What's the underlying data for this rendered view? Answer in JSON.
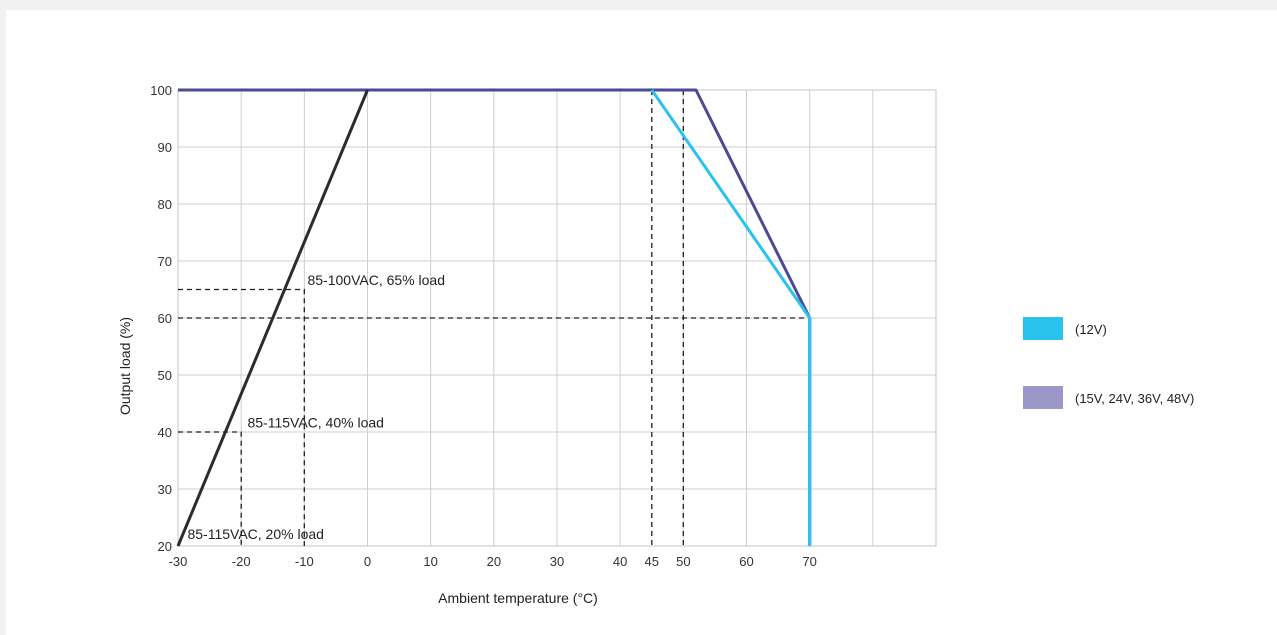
{
  "chart_data": {
    "type": "line",
    "xlabel": "Ambient temperature (°C)",
    "ylabel": "Output  load (%)",
    "xlim": [
      -30,
      90
    ],
    "ylim": [
      20,
      100
    ],
    "x_ticks": [
      {
        "value": -30,
        "label": "-30"
      },
      {
        "value": -20,
        "label": "-20"
      },
      {
        "value": -10,
        "label": "-10"
      },
      {
        "value": 0,
        "label": "0"
      },
      {
        "value": 10,
        "label": "10"
      },
      {
        "value": 20,
        "label": "20"
      },
      {
        "value": 30,
        "label": "30"
      },
      {
        "value": 40,
        "label": "40"
      },
      {
        "value": 45,
        "label": "45"
      },
      {
        "value": 50,
        "label": "50"
      },
      {
        "value": 60,
        "label": "60"
      },
      {
        "value": 70,
        "label": "70"
      }
    ],
    "x_grid": [
      -30,
      -20,
      -10,
      0,
      10,
      20,
      30,
      40,
      50,
      60,
      70,
      80,
      90
    ],
    "y_ticks": [
      20,
      30,
      40,
      50,
      60,
      70,
      80,
      90,
      100
    ],
    "grid": true,
    "legend_position": "right",
    "series": [
      {
        "name": "(12V)",
        "color": "#29c3ee",
        "points": [
          [
            45,
            100
          ],
          [
            70,
            60
          ],
          [
            70,
            20
          ]
        ]
      },
      {
        "name": "(15V, 24V, 36V, 48V)",
        "color": "#4b4a93",
        "points": [
          [
            -30,
            100
          ],
          [
            52,
            100
          ],
          [
            70,
            60
          ],
          [
            70,
            20
          ]
        ]
      },
      {
        "color": "#2c2c2e",
        "points": [
          [
            -30,
            20
          ],
          [
            0,
            100
          ]
        ]
      }
    ],
    "legend": [
      {
        "label": "(12V)",
        "color": "#29c3ee"
      },
      {
        "label": "(15V, 24V, 36V, 48V)",
        "color": "#9b97c9"
      }
    ],
    "guides": [
      {
        "points": [
          [
            -30,
            65
          ],
          [
            -10,
            65
          ],
          [
            -10,
            20
          ]
        ]
      },
      {
        "points": [
          [
            -30,
            60
          ],
          [
            70,
            60
          ]
        ]
      },
      {
        "points": [
          [
            -30,
            40
          ],
          [
            -20,
            40
          ],
          [
            -20,
            20
          ]
        ]
      },
      {
        "points": [
          [
            45,
            100
          ],
          [
            45,
            20
          ]
        ]
      },
      {
        "points": [
          [
            50,
            100
          ],
          [
            50,
            20
          ]
        ]
      }
    ],
    "annotations": [
      {
        "text": "85-100VAC, 65% load",
        "x": -9.5,
        "y": 65.8
      },
      {
        "text": "85-115VAC, 40% load",
        "x": -19,
        "y": 40.8
      },
      {
        "text": "85-115VAC, 20% load",
        "x": -28.5,
        "y": 21.2
      }
    ]
  }
}
